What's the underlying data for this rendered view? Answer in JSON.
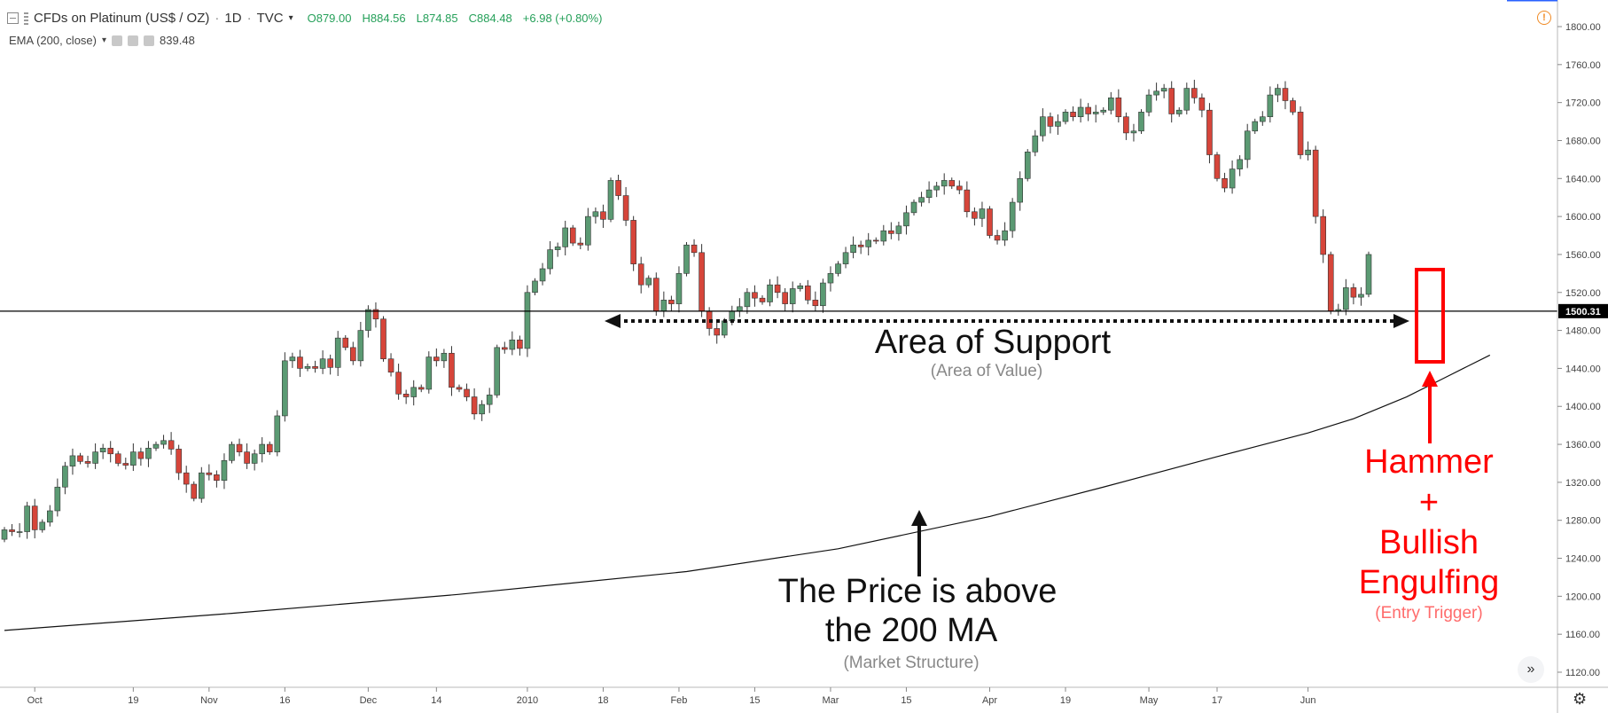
{
  "header": {
    "symbol_title": "CFDs on Platinum (US$ / OZ)",
    "interval": "1D",
    "source": "TVC",
    "ohlc": {
      "open": "O879.00",
      "high": "H884.56",
      "low": "L874.85",
      "close": "C884.48",
      "change": "+6.98 (+0.80%)"
    },
    "indicator_label": "EMA (200, close)",
    "indicator_value": "839.48"
  },
  "price_label": "1500.31",
  "colors": {
    "up": "#5b9a73",
    "down": "#d6453a",
    "annotation_red": "#ff0000",
    "hline": "#000000",
    "ema": "#111111"
  },
  "annotations": {
    "support_title": "Area of Support",
    "support_sub": "(Area of Value)",
    "price_line1": "The Price is above",
    "price_line2": "the 200 MA",
    "price_sub": "(Market Structure)",
    "hammer_1": "Hammer",
    "hammer_2": "+",
    "hammer_3": "Bullish",
    "hammer_4": "Engulfing",
    "hammer_sub": "(Entry Trigger)"
  },
  "icons": {
    "collapse": "collapse-icon",
    "warning": "warning-icon",
    "scroll": "scroll-right-icon",
    "settings": "gear-icon"
  },
  "chart_data": {
    "type": "candlestick",
    "ylim": [
      1120,
      1800
    ],
    "y_ticks": [
      1120,
      1160,
      1200,
      1240,
      1280,
      1320,
      1360,
      1400,
      1440,
      1480,
      1520,
      1560,
      1600,
      1640,
      1680,
      1720,
      1760,
      1800
    ],
    "x_ticks": [
      {
        "label": "Oct",
        "i": 4
      },
      {
        "label": "19",
        "i": 17
      },
      {
        "label": "Nov",
        "i": 27
      },
      {
        "label": "16",
        "i": 37
      },
      {
        "label": "Dec",
        "i": 48
      },
      {
        "label": "14",
        "i": 57
      },
      {
        "label": "2010",
        "i": 69
      },
      {
        "label": "18",
        "i": 79
      },
      {
        "label": "Feb",
        "i": 89
      },
      {
        "label": "15",
        "i": 99
      },
      {
        "label": "Mar",
        "i": 109
      },
      {
        "label": "15",
        "i": 119
      },
      {
        "label": "Apr",
        "i": 130
      },
      {
        "label": "19",
        "i": 140
      },
      {
        "label": "May",
        "i": 151
      },
      {
        "label": "17",
        "i": 160
      },
      {
        "label": "Jun",
        "i": 172
      }
    ],
    "support_level": 1500.31,
    "closes": [
      1270,
      1268,
      1268,
      1295,
      1270,
      1278,
      1290,
      1315,
      1337,
      1348,
      1342,
      1340,
      1352,
      1356,
      1350,
      1340,
      1338,
      1352,
      1345,
      1356,
      1360,
      1364,
      1355,
      1330,
      1318,
      1303,
      1330,
      1328,
      1322,
      1343,
      1360,
      1352,
      1340,
      1350,
      1360,
      1352,
      1390,
      1448,
      1452,
      1440,
      1442,
      1440,
      1450,
      1441,
      1472,
      1462,
      1448,
      1480,
      1502,
      1492,
      1450,
      1436,
      1413,
      1410,
      1420,
      1418,
      1452,
      1448,
      1456,
      1420,
      1418,
      1410,
      1392,
      1402,
      1412,
      1462,
      1460,
      1470,
      1461,
      1520,
      1532,
      1545,
      1565,
      1568,
      1588,
      1572,
      1570,
      1600,
      1605,
      1597,
      1638,
      1622,
      1596,
      1550,
      1528,
      1535,
      1500,
      1512,
      1508,
      1540,
      1570,
      1562,
      1500,
      1482,
      1475,
      1490,
      1500,
      1505,
      1520,
      1514,
      1510,
      1528,
      1520,
      1508,
      1524,
      1527,
      1512,
      1506,
      1530,
      1540,
      1550,
      1562,
      1570,
      1568,
      1575,
      1574,
      1585,
      1582,
      1590,
      1604,
      1615,
      1620,
      1628,
      1632,
      1638,
      1632,
      1628,
      1605,
      1598,
      1608,
      1580,
      1575,
      1585,
      1615,
      1640,
      1668,
      1685,
      1705,
      1695,
      1700,
      1710,
      1705,
      1715,
      1708,
      1710,
      1712,
      1725,
      1705,
      1688,
      1690,
      1710,
      1728,
      1732,
      1735,
      1708,
      1712,
      1735,
      1725,
      1712,
      1665,
      1640,
      1630,
      1650,
      1660,
      1690,
      1700,
      1705,
      1728,
      1735,
      1722,
      1710,
      1665,
      1670,
      1600,
      1560,
      1500,
      1502,
      1525,
      1515,
      1518,
      1560
    ],
    "ema_points": [
      [
        0,
        1164
      ],
      [
        30,
        1182
      ],
      [
        60,
        1202
      ],
      [
        90,
        1226
      ],
      [
        110,
        1250
      ],
      [
        130,
        1284
      ],
      [
        145,
        1315
      ],
      [
        160,
        1347
      ],
      [
        172,
        1372
      ],
      [
        178,
        1387
      ],
      [
        185,
        1410
      ],
      [
        190,
        1430
      ],
      [
        193,
        1442
      ],
      [
        196,
        1454
      ]
    ]
  }
}
